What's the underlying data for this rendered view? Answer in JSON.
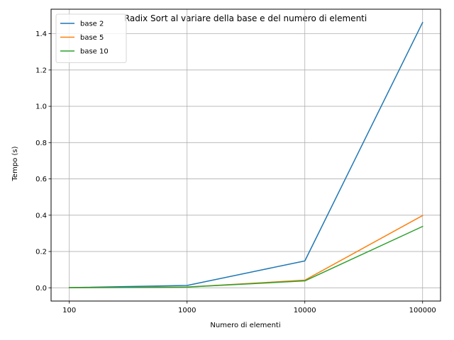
{
  "chart_data": {
    "type": "line",
    "title": "Radix Sort al variare della base e del numero di elementi",
    "xlabel": "Numero di elementi",
    "ylabel": "Tempo (s)",
    "x_scale": "log",
    "x": [
      100,
      1000,
      10000,
      100000
    ],
    "x_tick_labels": [
      "100",
      "1000",
      "10000",
      "100000"
    ],
    "y_ticks": [
      0.0,
      0.2,
      0.4,
      0.6,
      0.8,
      1.0,
      1.2,
      1.4
    ],
    "y_tick_labels": [
      "0.0",
      "0.2",
      "0.4",
      "0.6",
      "0.8",
      "1.0",
      "1.2",
      "1.4"
    ],
    "ylim": [
      -0.073,
      1.535
    ],
    "xlim": [
      70,
      142000
    ],
    "grid": true,
    "legend_position": "top-left",
    "series": [
      {
        "name": "base 2",
        "color": "#1f77b4",
        "values": [
          0.001,
          0.013,
          0.148,
          1.462
        ]
      },
      {
        "name": "base 5",
        "color": "#ff7f0e",
        "values": [
          0.0005,
          0.004,
          0.042,
          0.398
        ]
      },
      {
        "name": "base 10",
        "color": "#2ca02c",
        "values": [
          0.0005,
          0.004,
          0.038,
          0.338
        ]
      }
    ]
  }
}
